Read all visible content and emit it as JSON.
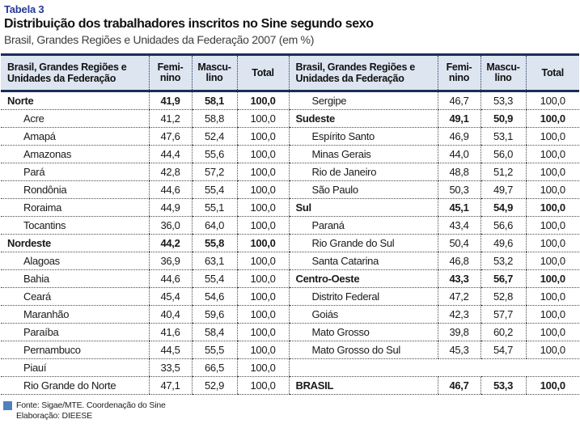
{
  "page": {
    "table_label": "Tabela 3",
    "title": "Distribuição dos trabalhadores inscritos no Sine segundo sexo",
    "subtitle": "Brasil, Grandes Regiões e Unidades da Federação 2007 (em %)"
  },
  "header": {
    "region_lines": [
      "Brasil, Grandes Regiões e",
      "Unidades da Federação"
    ],
    "fem_lines": [
      "Femi-",
      "nino"
    ],
    "masc_lines": [
      "Mascu-",
      "lino"
    ],
    "total": "Total"
  },
  "rows_left": [
    {
      "label": "Norte",
      "fem": "41,9",
      "masc": "58,1",
      "total": "100,0",
      "style": "region"
    },
    {
      "label": "Acre",
      "fem": "41,2",
      "masc": "58,8",
      "total": "100,0",
      "style": "state"
    },
    {
      "label": "Amapá",
      "fem": "47,6",
      "masc": "52,4",
      "total": "100,0",
      "style": "state"
    },
    {
      "label": "Amazonas",
      "fem": "44,4",
      "masc": "55,6",
      "total": "100,0",
      "style": "state"
    },
    {
      "label": "Pará",
      "fem": "42,8",
      "masc": "57,2",
      "total": "100,0",
      "style": "state"
    },
    {
      "label": "Rondônia",
      "fem": "44,6",
      "masc": "55,4",
      "total": "100,0",
      "style": "state"
    },
    {
      "label": "Roraima",
      "fem": "44,9",
      "masc": "55,1",
      "total": "100,0",
      "style": "state"
    },
    {
      "label": "Tocantins",
      "fem": "36,0",
      "masc": "64,0",
      "total": "100,0",
      "style": "state"
    },
    {
      "label": "Nordeste",
      "fem": "44,2",
      "masc": "55,8",
      "total": "100,0",
      "style": "region"
    },
    {
      "label": "Alagoas",
      "fem": "36,9",
      "masc": "63,1",
      "total": "100,0",
      "style": "state"
    },
    {
      "label": "Bahia",
      "fem": "44,6",
      "masc": "55,4",
      "total": "100,0",
      "style": "state"
    },
    {
      "label": "Ceará",
      "fem": "45,4",
      "masc": "54,6",
      "total": "100,0",
      "style": "state"
    },
    {
      "label": "Maranhão",
      "fem": "40,4",
      "masc": "59,6",
      "total": "100,0",
      "style": "state"
    },
    {
      "label": "Paraíba",
      "fem": "41,6",
      "masc": "58,4",
      "total": "100,0",
      "style": "state"
    },
    {
      "label": "Pernambuco",
      "fem": "44,5",
      "masc": "55,5",
      "total": "100,0",
      "style": "state"
    },
    {
      "label": "Piauí",
      "fem": "33,5",
      "masc": "66,5",
      "total": "100,0",
      "style": "state"
    },
    {
      "label": "Rio Grande do Norte",
      "fem": "47,1",
      "masc": "52,9",
      "total": "100,0",
      "style": "state"
    }
  ],
  "rows_right": [
    {
      "label": "Sergipe",
      "fem": "46,7",
      "masc": "53,3",
      "total": "100,0",
      "style": "state"
    },
    {
      "label": "Sudeste",
      "fem": "49,1",
      "masc": "50,9",
      "total": "100,0",
      "style": "region"
    },
    {
      "label": "Espírito Santo",
      "fem": "46,9",
      "masc": "53,1",
      "total": "100,0",
      "style": "state"
    },
    {
      "label": "Minas Gerais",
      "fem": "44,0",
      "masc": "56,0",
      "total": "100,0",
      "style": "state"
    },
    {
      "label": "Rio de Janeiro",
      "fem": "48,8",
      "masc": "51,2",
      "total": "100,0",
      "style": "state"
    },
    {
      "label": "São Paulo",
      "fem": "50,3",
      "masc": "49,7",
      "total": "100,0",
      "style": "state"
    },
    {
      "label": "Sul",
      "fem": "45,1",
      "masc": "54,9",
      "total": "100,0",
      "style": "region"
    },
    {
      "label": "Paraná",
      "fem": "43,4",
      "masc": "56,6",
      "total": "100,0",
      "style": "state"
    },
    {
      "label": "Rio Grande do Sul",
      "fem": "50,4",
      "masc": "49,6",
      "total": "100,0",
      "style": "state"
    },
    {
      "label": "Santa Catarina",
      "fem": "46,8",
      "masc": "53,2",
      "total": "100,0",
      "style": "state"
    },
    {
      "label": "Centro-Oeste",
      "fem": "43,3",
      "masc": "56,7",
      "total": "100,0",
      "style": "region"
    },
    {
      "label": "Distrito Federal",
      "fem": "47,2",
      "masc": "52,8",
      "total": "100,0",
      "style": "state"
    },
    {
      "label": "Goiás",
      "fem": "42,3",
      "masc": "57,7",
      "total": "100,0",
      "style": "state"
    },
    {
      "label": "Mato Grosso",
      "fem": "39,8",
      "masc": "60,2",
      "total": "100,0",
      "style": "state"
    },
    {
      "label": "Mato Grosso do Sul",
      "fem": "45,3",
      "masc": "54,7",
      "total": "100,0",
      "style": "state"
    },
    {
      "label": "",
      "fem": "",
      "masc": "",
      "total": "",
      "style": "empty"
    },
    {
      "label": "BRASIL",
      "fem": "46,7",
      "masc": "53,3",
      "total": "100,0",
      "style": "region"
    }
  ],
  "footer": {
    "fonte": "Fonte: Sigae/MTE. Coordenação do Sine",
    "elaboracao": "Elaboração: DIEESE"
  },
  "colors": {
    "title_blue": "#233a97",
    "header_border_navy": "#1b2e58",
    "header_bg": "#dde5f0",
    "source_square_blue": "#4f81bd"
  },
  "chart_data": {
    "type": "table",
    "title": "Distribuição dos trabalhadores inscritos no Sine segundo sexo",
    "subtitle": "Brasil, Grandes Regiões e Unidades da Federação 2007 (em %)",
    "columns": [
      "Brasil, Grandes Regiões e Unidades da Federação",
      "Feminino",
      "Masculino",
      "Total"
    ],
    "rows": [
      {
        "label": "Norte",
        "feminino": 41.9,
        "masculino": 58.1,
        "total": 100.0,
        "aggregate": true
      },
      {
        "label": "Acre",
        "feminino": 41.2,
        "masculino": 58.8,
        "total": 100.0,
        "aggregate": false
      },
      {
        "label": "Amapá",
        "feminino": 47.6,
        "masculino": 52.4,
        "total": 100.0,
        "aggregate": false
      },
      {
        "label": "Amazonas",
        "feminino": 44.4,
        "masculino": 55.6,
        "total": 100.0,
        "aggregate": false
      },
      {
        "label": "Pará",
        "feminino": 42.8,
        "masculino": 57.2,
        "total": 100.0,
        "aggregate": false
      },
      {
        "label": "Rondônia",
        "feminino": 44.6,
        "masculino": 55.4,
        "total": 100.0,
        "aggregate": false
      },
      {
        "label": "Roraima",
        "feminino": 44.9,
        "masculino": 55.1,
        "total": 100.0,
        "aggregate": false
      },
      {
        "label": "Tocantins",
        "feminino": 36.0,
        "masculino": 64.0,
        "total": 100.0,
        "aggregate": false
      },
      {
        "label": "Nordeste",
        "feminino": 44.2,
        "masculino": 55.8,
        "total": 100.0,
        "aggregate": true
      },
      {
        "label": "Alagoas",
        "feminino": 36.9,
        "masculino": 63.1,
        "total": 100.0,
        "aggregate": false
      },
      {
        "label": "Bahia",
        "feminino": 44.6,
        "masculino": 55.4,
        "total": 100.0,
        "aggregate": false
      },
      {
        "label": "Ceará",
        "feminino": 45.4,
        "masculino": 54.6,
        "total": 100.0,
        "aggregate": false
      },
      {
        "label": "Maranhão",
        "feminino": 40.4,
        "masculino": 59.6,
        "total": 100.0,
        "aggregate": false
      },
      {
        "label": "Paraíba",
        "feminino": 41.6,
        "masculino": 58.4,
        "total": 100.0,
        "aggregate": false
      },
      {
        "label": "Pernambuco",
        "feminino": 44.5,
        "masculino": 55.5,
        "total": 100.0,
        "aggregate": false
      },
      {
        "label": "Piauí",
        "feminino": 33.5,
        "masculino": 66.5,
        "total": 100.0,
        "aggregate": false
      },
      {
        "label": "Rio Grande do Norte",
        "feminino": 47.1,
        "masculino": 52.9,
        "total": 100.0,
        "aggregate": false
      },
      {
        "label": "Sergipe",
        "feminino": 46.7,
        "masculino": 53.3,
        "total": 100.0,
        "aggregate": false
      },
      {
        "label": "Sudeste",
        "feminino": 49.1,
        "masculino": 50.9,
        "total": 100.0,
        "aggregate": true
      },
      {
        "label": "Espírito Santo",
        "feminino": 46.9,
        "masculino": 53.1,
        "total": 100.0,
        "aggregate": false
      },
      {
        "label": "Minas Gerais",
        "feminino": 44.0,
        "masculino": 56.0,
        "total": 100.0,
        "aggregate": false
      },
      {
        "label": "Rio de Janeiro",
        "feminino": 48.8,
        "masculino": 51.2,
        "total": 100.0,
        "aggregate": false
      },
      {
        "label": "São Paulo",
        "feminino": 50.3,
        "masculino": 49.7,
        "total": 100.0,
        "aggregate": false
      },
      {
        "label": "Sul",
        "feminino": 45.1,
        "masculino": 54.9,
        "total": 100.0,
        "aggregate": true
      },
      {
        "label": "Paraná",
        "feminino": 43.4,
        "masculino": 56.6,
        "total": 100.0,
        "aggregate": false
      },
      {
        "label": "Rio Grande do Sul",
        "feminino": 50.4,
        "masculino": 49.6,
        "total": 100.0,
        "aggregate": false
      },
      {
        "label": "Santa Catarina",
        "feminino": 46.8,
        "masculino": 53.2,
        "total": 100.0,
        "aggregate": false
      },
      {
        "label": "Centro-Oeste",
        "feminino": 43.3,
        "masculino": 56.7,
        "total": 100.0,
        "aggregate": true
      },
      {
        "label": "Distrito Federal",
        "feminino": 47.2,
        "masculino": 52.8,
        "total": 100.0,
        "aggregate": false
      },
      {
        "label": "Goiás",
        "feminino": 42.3,
        "masculino": 57.7,
        "total": 100.0,
        "aggregate": false
      },
      {
        "label": "Mato Grosso",
        "feminino": 39.8,
        "masculino": 60.2,
        "total": 100.0,
        "aggregate": false
      },
      {
        "label": "Mato Grosso do Sul",
        "feminino": 45.3,
        "masculino": 54.7,
        "total": 100.0,
        "aggregate": false
      },
      {
        "label": "BRASIL",
        "feminino": 46.7,
        "masculino": 53.3,
        "total": 100.0,
        "aggregate": true
      }
    ]
  }
}
